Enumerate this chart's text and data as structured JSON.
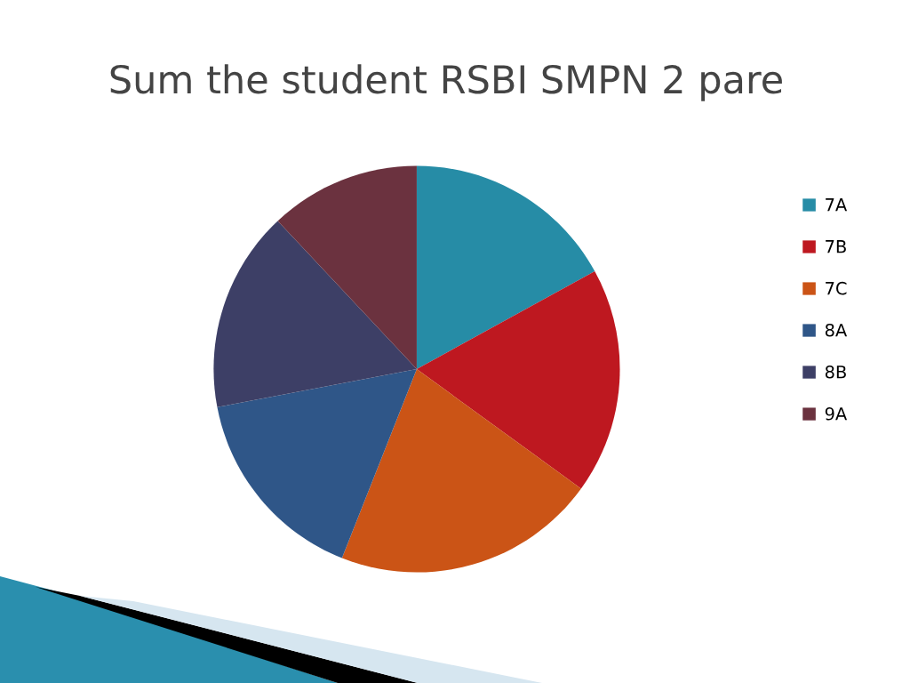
{
  "chart_data": {
    "type": "pie",
    "title": "Sum the student RSBI SMPN 2 pare",
    "categories": [
      "7A",
      "7B",
      "7C",
      "8A",
      "8B",
      "9A"
    ],
    "values": [
      17,
      18,
      21,
      16,
      16,
      12
    ],
    "colors": [
      "#268ca6",
      "#be1820",
      "#cb5416",
      "#2f5688",
      "#3d3f66",
      "#6b323f"
    ],
    "legend": "right"
  }
}
